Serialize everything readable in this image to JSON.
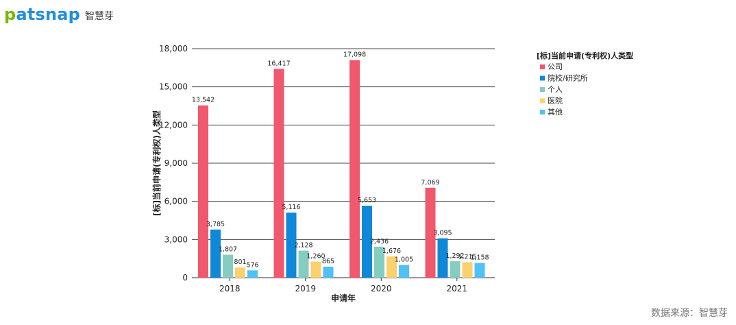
{
  "brand": {
    "logo_lead": "p",
    "logo_rest": "atsnap",
    "name_cn": "智慧芽"
  },
  "source_label": "数据来源：智慧芽",
  "chart_data": {
    "type": "bar",
    "title": "",
    "xlabel": "申请年",
    "ylabel": "[标]当前申请(专利权)人类型",
    "ylim": [
      0,
      18000
    ],
    "yticks": [
      0,
      3000,
      6000,
      9000,
      12000,
      15000,
      18000
    ],
    "ytick_labels": [
      "0",
      "3,000",
      "6,000",
      "9,000",
      "12,000",
      "15,000",
      "18,000"
    ],
    "grid": true,
    "legend": {
      "title": "[标]当前申请(专利权)人类型",
      "position": "right"
    },
    "categories": [
      "2018",
      "2019",
      "2020",
      "2021"
    ],
    "series": [
      {
        "name": "公司",
        "color": "#f0586d",
        "values": [
          13542,
          16417,
          17098,
          7069
        ],
        "labels": [
          "13,542",
          "16,417",
          "17,098",
          "7,069"
        ]
      },
      {
        "name": "院校/研究所",
        "color": "#0f88d8",
        "values": [
          3785,
          5116,
          5653,
          3095
        ],
        "labels": [
          "3,785",
          "5,116",
          "5,653",
          "3,095"
        ]
      },
      {
        "name": "个人",
        "color": "#86cdc1",
        "values": [
          1807,
          2128,
          2436,
          1292
        ],
        "labels": [
          "1,807",
          "2,128",
          "2,436",
          "1,292"
        ]
      },
      {
        "name": "医院",
        "color": "#f9d26e",
        "values": [
          801,
          1260,
          1676,
          1215
        ],
        "labels": [
          "801",
          "1,260",
          "1,676",
          "1,215"
        ]
      },
      {
        "name": "其他",
        "color": "#4fc1f4",
        "values": [
          576,
          865,
          1005,
          1158
        ],
        "labels": [
          "576",
          "865",
          "1,005",
          "1,158"
        ]
      }
    ]
  }
}
